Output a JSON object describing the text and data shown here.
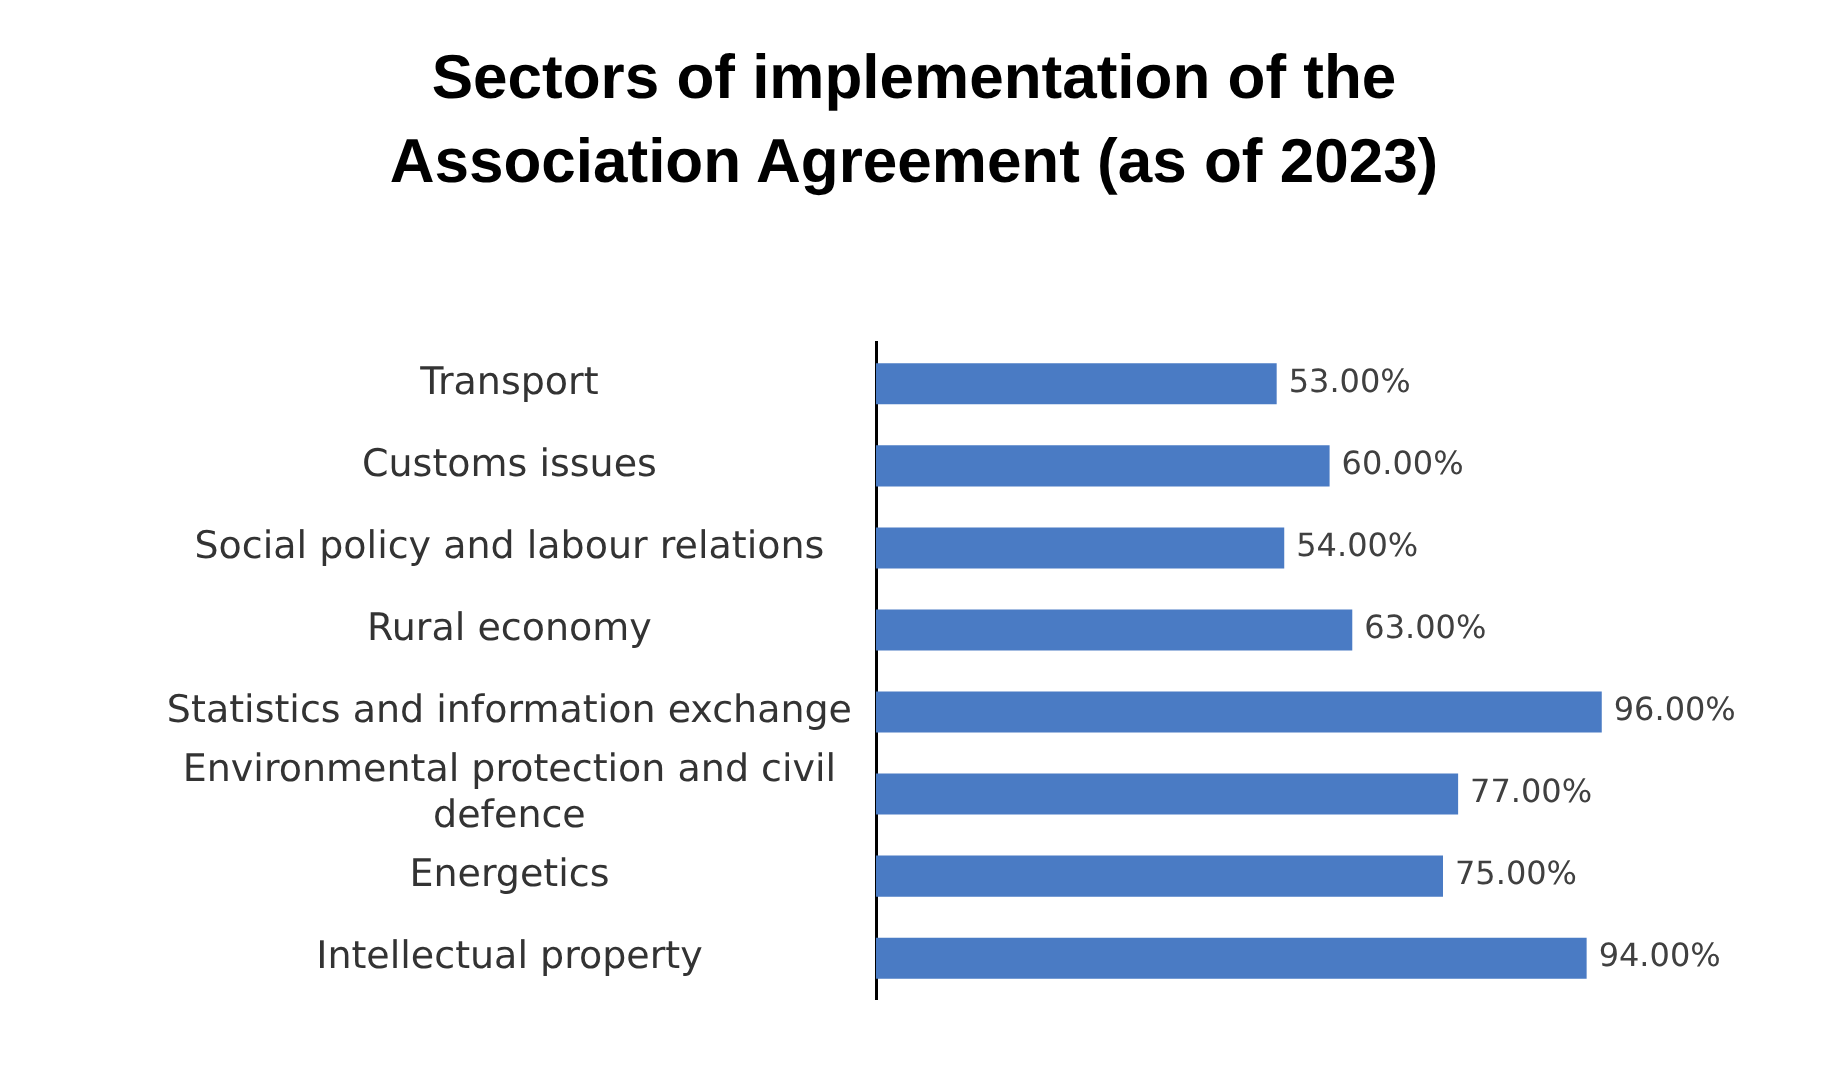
{
  "chart_data": {
    "type": "bar",
    "orientation": "horizontal",
    "title": "Sectors of implementation of the Association Agreement (as of 2023)",
    "categories": [
      "Transport",
      "Customs issues",
      "Social policy and labour relations",
      "Rural economy",
      "Statistics and information exchange",
      "Environmental protection and civil defence",
      "Energetics",
      "Intellectual property"
    ],
    "values": [
      53,
      60,
      54,
      63,
      96,
      77,
      75,
      94
    ],
    "value_labels": [
      "53.00%",
      "60.00%",
      "54.00%",
      "63.00%",
      "96.00%",
      "77.00%",
      "75.00%",
      "94.00%"
    ],
    "color": "#4a7bc4",
    "grid": false,
    "legend": false,
    "tick_labels": "y"
  }
}
